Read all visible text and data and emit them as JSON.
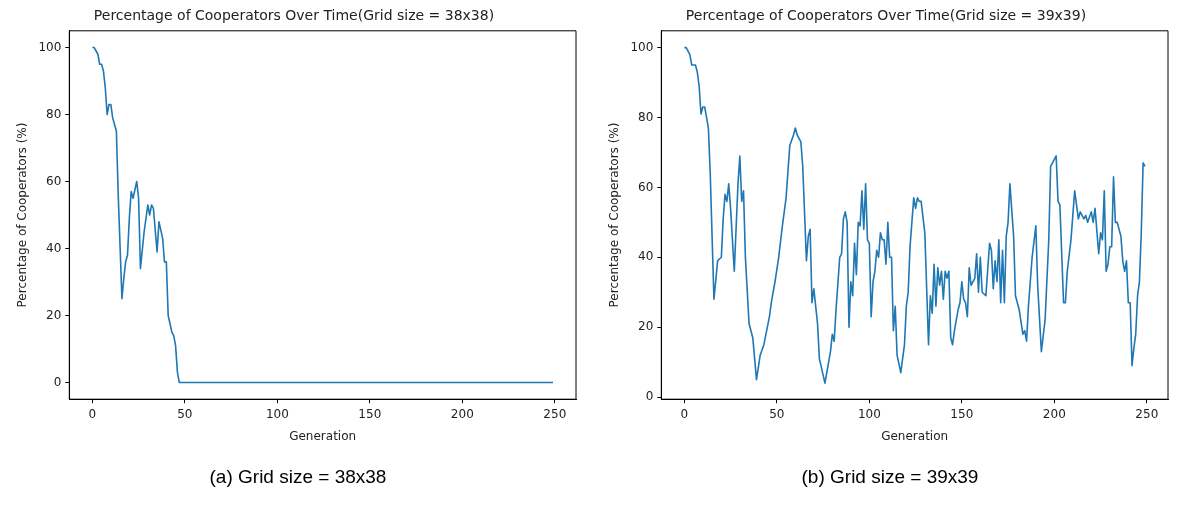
{
  "chart_data": [
    {
      "type": "line",
      "title": "Percentage of Cooperators Over Time(Grid size = 38x38)",
      "xlabel": "Generation",
      "ylabel": "Percentage of Cooperators (%)",
      "color": "#1f77b4",
      "grid": false,
      "x": [
        0,
        1,
        3,
        4,
        5,
        6,
        7,
        8,
        9,
        10,
        11,
        12,
        13,
        14,
        16,
        17,
        18,
        19,
        20,
        21,
        22,
        24,
        25,
        26,
        28,
        30,
        31,
        32,
        33,
        35,
        36,
        38,
        39,
        40,
        41,
        43,
        44,
        45,
        46,
        47,
        249
      ],
      "values": [
        100,
        100,
        98,
        95,
        95,
        93,
        88,
        80,
        83,
        83,
        79,
        77,
        75,
        56,
        25,
        31,
        36,
        38,
        49,
        57,
        55,
        60,
        55,
        34,
        45,
        53,
        50,
        53,
        52,
        39,
        48,
        43,
        36,
        36,
        20,
        15,
        14,
        11,
        3,
        0,
        0
      ],
      "xlim": [
        -12.45,
        261.45
      ],
      "ylim": [
        -5,
        105
      ],
      "xticks": [
        0,
        50,
        100,
        150,
        200,
        250
      ],
      "yticks": [
        0,
        20,
        40,
        60,
        80,
        100
      ],
      "annotations": [
        "(a) Grid size = 38x38"
      ]
    },
    {
      "type": "line",
      "title": "Percentage of Cooperators Over Time(Grid size = 39x39)",
      "xlabel": "Generation",
      "ylabel": "Percentage of Cooperators (%)",
      "color": "#1f77b4",
      "grid": false,
      "x": [
        0,
        1,
        3,
        4,
        6,
        7,
        8,
        9,
        10,
        11,
        12,
        13,
        14,
        16,
        18,
        20,
        21,
        22,
        23,
        24,
        25,
        27,
        29,
        30,
        31,
        32,
        33,
        35,
        37,
        39,
        41,
        43,
        46,
        47,
        49,
        51,
        53,
        55,
        57,
        59,
        60,
        61,
        63,
        64,
        66,
        67,
        68,
        69,
        70,
        72,
        73,
        76,
        79,
        80,
        81,
        82,
        84,
        85,
        86,
        87,
        88,
        89,
        90,
        91,
        92,
        93,
        94,
        95,
        96,
        97,
        98,
        99,
        100,
        101,
        102,
        103,
        104,
        105,
        106,
        107,
        108,
        109,
        110,
        111,
        112,
        113,
        114,
        115,
        117,
        119,
        120,
        121,
        122,
        124,
        125,
        126,
        127,
        128,
        130,
        132,
        133,
        134,
        135,
        136,
        137,
        138,
        139,
        140,
        141,
        142,
        143,
        144,
        145,
        146,
        148,
        149,
        150,
        151,
        152,
        153,
        154,
        155,
        156,
        157,
        158,
        159,
        160,
        161,
        163,
        165,
        166,
        167,
        168,
        169,
        170,
        171,
        172,
        173,
        174,
        175,
        176,
        178,
        179,
        180,
        181,
        183,
        184,
        185,
        186,
        188,
        190,
        191,
        193,
        195,
        197,
        198,
        199,
        201,
        202,
        203,
        205,
        206,
        207,
        209,
        211,
        212,
        213,
        214,
        216,
        217,
        218,
        220,
        221,
        222,
        224,
        225,
        226,
        227,
        228,
        229,
        230,
        231,
        232,
        233,
        234,
        236,
        237,
        238,
        239,
        240,
        241,
        242,
        243,
        244,
        245,
        246,
        247,
        248,
        249
      ],
      "values": [
        100,
        100,
        98,
        95,
        95,
        93,
        89,
        81,
        83,
        83,
        80,
        77,
        64,
        28,
        39,
        40,
        51,
        58,
        56,
        61,
        54,
        36,
        61,
        69,
        56,
        59,
        40,
        21,
        17,
        5,
        12,
        15,
        23,
        27,
        33,
        40,
        49,
        57,
        72,
        75,
        77,
        75,
        73,
        66,
        39,
        46,
        48,
        27,
        31,
        21,
        11,
        4,
        13,
        18,
        16,
        25,
        40,
        41,
        51,
        53,
        50,
        20,
        33,
        29,
        44,
        35,
        50,
        49,
        59,
        48,
        61,
        45,
        44,
        23,
        33,
        36,
        42,
        40,
        47,
        45,
        45,
        38,
        50,
        40,
        40,
        19,
        26,
        12,
        7,
        15,
        26,
        30,
        43,
        57,
        54,
        57,
        56,
        56,
        47,
        15,
        29,
        24,
        38,
        26,
        37,
        32,
        36,
        28,
        36,
        34,
        36,
        17,
        15,
        19,
        25,
        27,
        33,
        28,
        27,
        23,
        37,
        32,
        33,
        34,
        41,
        30,
        40,
        30,
        29,
        44,
        42,
        31,
        39,
        33,
        45,
        27,
        42,
        27,
        46,
        50,
        61,
        46,
        29,
        27,
        25,
        18,
        19,
        16,
        26,
        40,
        49,
        32,
        13,
        22,
        45,
        66,
        67,
        69,
        56,
        55,
        27,
        27,
        36,
        45,
        59,
        55,
        51,
        53,
        51,
        52,
        50,
        53,
        50,
        54,
        41,
        47,
        45,
        59,
        36,
        38,
        43,
        43,
        63,
        50,
        50,
        46,
        39,
        36,
        39,
        27,
        27,
        9,
        14,
        18,
        29,
        33,
        47,
        67,
        66
      ],
      "xlim": [
        -12.45,
        261.45
      ],
      "ylim": [
        -0.6,
        104.8
      ],
      "xticks": [
        0,
        50,
        100,
        150,
        200,
        250
      ],
      "yticks": [
        0,
        20,
        40,
        60,
        80,
        100
      ],
      "annotations": [
        "(b) Grid size = 39x39"
      ]
    }
  ]
}
